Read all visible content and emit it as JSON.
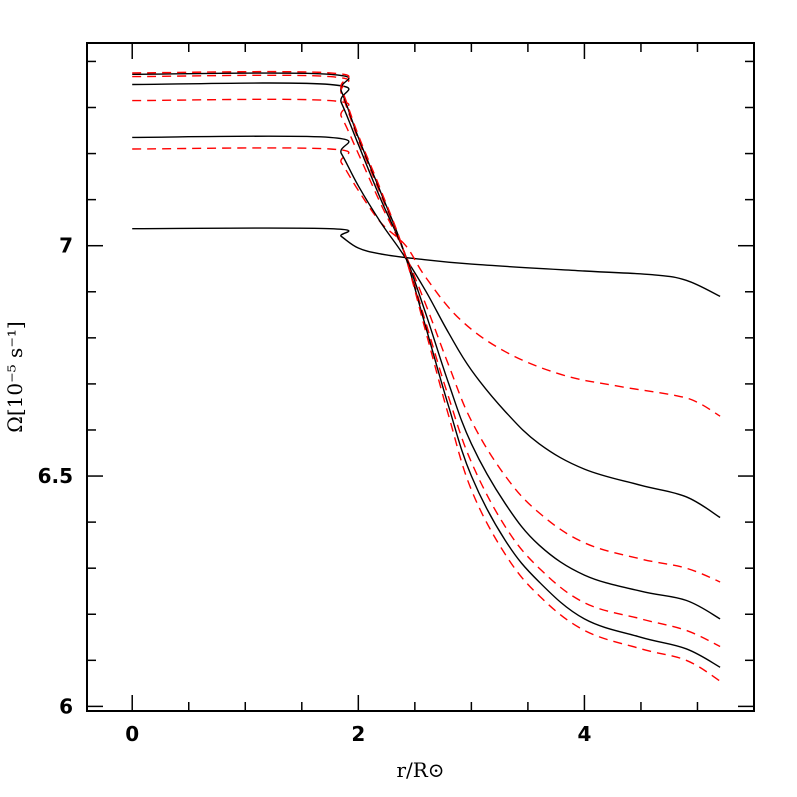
{
  "chart_data": {
    "type": "line",
    "title": "",
    "xlabel": "r/R⊙",
    "ylabel": "Ω[10⁻⁵ s⁻¹]",
    "xlim": [
      -0.4,
      5.5
    ],
    "ylim": [
      5.99,
      7.44
    ],
    "x_ticks": [
      "0",
      "2",
      "4"
    ],
    "x_tick_values": [
      0,
      2,
      4
    ],
    "y_ticks": [
      "6",
      "6.5",
      "7"
    ],
    "y_tick_values": [
      6,
      6.5,
      7
    ],
    "x_minor_step": 0.5,
    "y_minor_step": 0.1,
    "grid": false,
    "legend": "none",
    "colors": {
      "solid": "#000000",
      "dashed": "#ff0000",
      "frame": "#000000"
    },
    "series": [
      {
        "style": "solid",
        "color": "#000000",
        "points": [
          [
            0,
            7.037
          ],
          [
            1.75,
            7.037
          ],
          [
            1.85,
            7.02
          ],
          [
            2.0,
            6.995
          ],
          [
            2.2,
            6.982
          ],
          [
            2.5,
            6.972
          ],
          [
            3.0,
            6.96
          ],
          [
            4.0,
            6.945
          ],
          [
            4.6,
            6.937
          ],
          [
            4.9,
            6.925
          ],
          [
            5.2,
            6.89
          ]
        ]
      },
      {
        "style": "dashed",
        "color": "#ff0000",
        "points": [
          [
            0,
            7.21
          ],
          [
            1.75,
            7.21
          ],
          [
            1.85,
            7.18
          ],
          [
            2.0,
            7.12
          ],
          [
            2.2,
            7.05
          ],
          [
            2.42,
            7.0
          ],
          [
            2.6,
            6.93
          ],
          [
            2.9,
            6.84
          ],
          [
            3.3,
            6.77
          ],
          [
            3.8,
            6.72
          ],
          [
            4.3,
            6.695
          ],
          [
            4.8,
            6.675
          ],
          [
            5.0,
            6.66
          ],
          [
            5.2,
            6.63
          ]
        ]
      },
      {
        "style": "solid",
        "color": "#000000",
        "points": [
          [
            0,
            7.235
          ],
          [
            1.75,
            7.235
          ],
          [
            1.85,
            7.2
          ],
          [
            2.0,
            7.13
          ],
          [
            2.2,
            7.05
          ],
          [
            2.4,
            6.98
          ],
          [
            2.6,
            6.9
          ],
          [
            2.8,
            6.81
          ],
          [
            3.0,
            6.73
          ],
          [
            3.3,
            6.64
          ],
          [
            3.6,
            6.57
          ],
          [
            4.0,
            6.515
          ],
          [
            4.5,
            6.48
          ],
          [
            4.9,
            6.455
          ],
          [
            5.2,
            6.41
          ]
        ]
      },
      {
        "style": "dashed",
        "color": "#ff0000",
        "points": [
          [
            0,
            7.315
          ],
          [
            1.75,
            7.315
          ],
          [
            1.85,
            7.28
          ],
          [
            2.0,
            7.2
          ],
          [
            2.2,
            7.09
          ],
          [
            2.4,
            6.99
          ],
          [
            2.6,
            6.87
          ],
          [
            2.8,
            6.74
          ],
          [
            3.0,
            6.62
          ],
          [
            3.3,
            6.5
          ],
          [
            3.6,
            6.42
          ],
          [
            4.0,
            6.355
          ],
          [
            4.5,
            6.32
          ],
          [
            4.9,
            6.3
          ],
          [
            5.2,
            6.27
          ]
        ]
      },
      {
        "style": "solid",
        "color": "#000000",
        "points": [
          [
            0,
            7.35
          ],
          [
            1.75,
            7.35
          ],
          [
            1.85,
            7.31
          ],
          [
            2.0,
            7.22
          ],
          [
            2.2,
            7.1
          ],
          [
            2.4,
            6.99
          ],
          [
            2.6,
            6.85
          ],
          [
            2.8,
            6.7
          ],
          [
            3.0,
            6.57
          ],
          [
            3.3,
            6.44
          ],
          [
            3.6,
            6.35
          ],
          [
            4.0,
            6.285
          ],
          [
            4.5,
            6.25
          ],
          [
            4.9,
            6.23
          ],
          [
            5.2,
            6.19
          ]
        ]
      },
      {
        "style": "dashed",
        "color": "#ff0000",
        "points": [
          [
            0,
            7.367
          ],
          [
            1.75,
            7.367
          ],
          [
            1.85,
            7.33
          ],
          [
            2.0,
            7.23
          ],
          [
            2.2,
            7.11
          ],
          [
            2.4,
            6.99
          ],
          [
            2.6,
            6.83
          ],
          [
            2.8,
            6.67
          ],
          [
            3.0,
            6.53
          ],
          [
            3.3,
            6.39
          ],
          [
            3.6,
            6.3
          ],
          [
            4.0,
            6.225
          ],
          [
            4.5,
            6.19
          ],
          [
            4.9,
            6.165
          ],
          [
            5.2,
            6.13
          ]
        ]
      },
      {
        "style": "solid",
        "color": "#000000",
        "points": [
          [
            0,
            7.372
          ],
          [
            1.75,
            7.372
          ],
          [
            1.85,
            7.335
          ],
          [
            2.0,
            7.235
          ],
          [
            2.2,
            7.115
          ],
          [
            2.4,
            6.99
          ],
          [
            2.6,
            6.82
          ],
          [
            2.8,
            6.65
          ],
          [
            3.0,
            6.5
          ],
          [
            3.3,
            6.36
          ],
          [
            3.6,
            6.27
          ],
          [
            4.0,
            6.19
          ],
          [
            4.5,
            6.15
          ],
          [
            4.9,
            6.125
          ],
          [
            5.2,
            6.085
          ]
        ]
      },
      {
        "style": "dashed",
        "color": "#ff0000",
        "points": [
          [
            0,
            7.375
          ],
          [
            1.75,
            7.375
          ],
          [
            1.85,
            7.34
          ],
          [
            2.0,
            7.24
          ],
          [
            2.2,
            7.12
          ],
          [
            2.4,
            6.99
          ],
          [
            2.6,
            6.81
          ],
          [
            2.8,
            6.63
          ],
          [
            3.0,
            6.47
          ],
          [
            3.3,
            6.33
          ],
          [
            3.6,
            6.24
          ],
          [
            4.0,
            6.165
          ],
          [
            4.5,
            6.125
          ],
          [
            4.9,
            6.1
          ],
          [
            5.2,
            6.055
          ]
        ]
      }
    ]
  }
}
